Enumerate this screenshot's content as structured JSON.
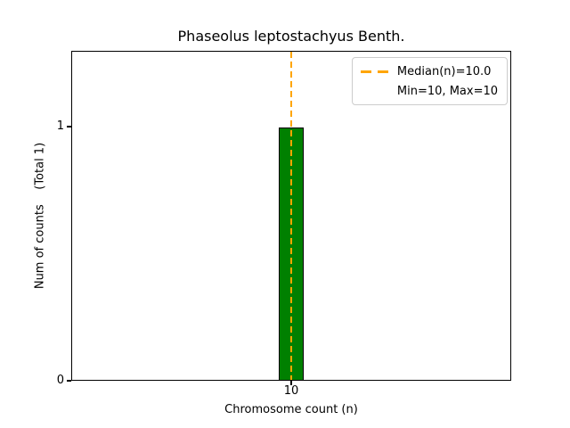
{
  "figure": {
    "title": "Phaseolus leptostachyus Benth.",
    "xlabel": "Chromosome count (n)",
    "ylabel": "Num of counts    (Total 1)",
    "yticks": [
      "1",
      "0"
    ],
    "xticks": [
      "10"
    ]
  },
  "legend": {
    "entries": [
      {
        "label": "Median(n)=10.0",
        "marker": "orange-dashed-line"
      },
      {
        "label": "Min=10, Max=10",
        "marker": "none"
      }
    ]
  },
  "chart_data": {
    "type": "bar",
    "title": "Phaseolus leptostachyus Benth.",
    "xlabel": "Chromosome count (n)",
    "ylabel": "Num of counts",
    "ylabel_annotation": "(Total 1)",
    "categories": [
      10
    ],
    "values": [
      1
    ],
    "total_counts": 1,
    "median_n": 10.0,
    "min_n": 10,
    "max_n": 10,
    "ylim": [
      0,
      1.3
    ],
    "yticks": [
      0,
      1
    ],
    "xticks": [
      10
    ],
    "grid": false,
    "legend_position": "upper right",
    "colors": {
      "bar_fill": "#008000",
      "bar_edge": "#000000",
      "median_line": "#FFA500",
      "legend_border": "#cccccc",
      "text": "#000000",
      "background": "#ffffff"
    }
  }
}
